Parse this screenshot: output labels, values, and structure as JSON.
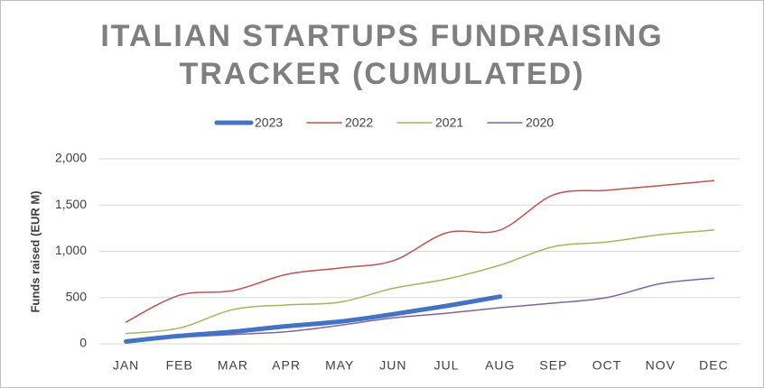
{
  "chart_data": {
    "type": "line",
    "title": [
      "ITALIAN STARTUPS FUNDRAISING",
      "TRACKER (CUMULATED)"
    ],
    "y_label": "Funds raised (EUR M)",
    "categories": [
      "JAN",
      "FEB",
      "MAR",
      "APR",
      "MAY",
      "JUN",
      "JUL",
      "AUG",
      "SEP",
      "OCT",
      "NOV",
      "DEC"
    ],
    "series": [
      {
        "name": "2023",
        "color": "#4472c4",
        "width": 5,
        "values": [
          25,
          85,
          130,
          190,
          240,
          320,
          410,
          510,
          null,
          null,
          null,
          null
        ]
      },
      {
        "name": "2022",
        "color": "#c0504d",
        "width": 1.5,
        "values": [
          235,
          525,
          575,
          750,
          820,
          898,
          1200,
          1230,
          1610,
          1660,
          1710,
          1765
        ]
      },
      {
        "name": "2021",
        "color": "#9bbb59",
        "width": 1.5,
        "values": [
          110,
          170,
          370,
          420,
          450,
          600,
          700,
          850,
          1050,
          1100,
          1180,
          1230
        ]
      },
      {
        "name": "2020",
        "color": "#8064a2",
        "width": 1.5,
        "values": [
          20,
          70,
          100,
          130,
          200,
          280,
          330,
          390,
          440,
          500,
          650,
          710
        ]
      }
    ],
    "ylim": [
      0,
      2000
    ],
    "yticks": [
      0,
      500,
      {
        "value": 1000,
        "label": "1,000"
      },
      {
        "value": 1500,
        "label": "1,500"
      },
      {
        "value": 2000,
        "label": "2,000"
      }
    ],
    "grid": true
  }
}
